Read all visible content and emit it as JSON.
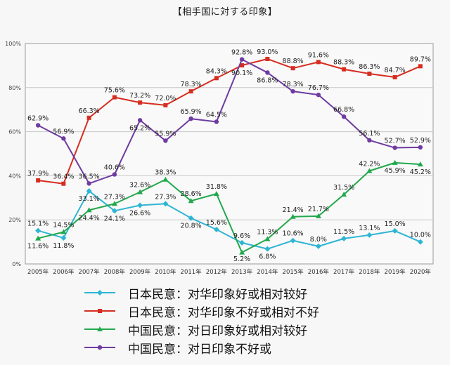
{
  "chart_data": {
    "type": "line",
    "title": "【相手国に対する印象】",
    "x": [
      "2005年",
      "2006年",
      "2007年",
      "2008年",
      "2009年",
      "2010年",
      "2011年",
      "2012年",
      "2013年",
      "2014年",
      "2015年",
      "2016年",
      "2017年",
      "2018年",
      "2019年",
      "2020年"
    ],
    "y_ticks": [
      "0%",
      "20%",
      "40%",
      "60%",
      "80%",
      "100%"
    ],
    "ylim": [
      0,
      100
    ],
    "grid": "horizontal",
    "legend_position": "bottom",
    "series": [
      {
        "name": "日本民意：对华印象好或相对较好",
        "color": "#2fb5d4",
        "marker": "diamond",
        "values": [
          15.1,
          11.8,
          33.1,
          24.1,
          26.6,
          27.3,
          20.8,
          15.6,
          9.6,
          6.8,
          10.6,
          8.0,
          11.5,
          13.1,
          15.0,
          10.0
        ],
        "labels": [
          "15.1%",
          "11.8%",
          "33.1%",
          "24.1%",
          "26.6%",
          "27.3%",
          "20.8%",
          "15.6%",
          "9.6%",
          "6.8%",
          "10.6%",
          "8.0%",
          "11.5%",
          "13.1%",
          "15.0%",
          "10.0%"
        ]
      },
      {
        "name": "日本民意：对华印象不好或相对不好",
        "color": "#d62d20",
        "marker": "square",
        "values": [
          37.9,
          36.4,
          66.3,
          75.6,
          73.2,
          72.0,
          78.3,
          84.3,
          90.1,
          93.0,
          88.8,
          91.6,
          88.3,
          86.3,
          84.7,
          89.7
        ],
        "labels": [
          "37.9%",
          "36.4%",
          "66.3%",
          "75.6%",
          "73.2%",
          "72.0%",
          "78.3%",
          "84.3%",
          "90.1%",
          "93.0%",
          "88.8%",
          "91.6%",
          "88.3%",
          "86.3%",
          "84.7%",
          "89.7%"
        ]
      },
      {
        "name": "中国民意：对日印象好或相对较好",
        "color": "#21a84c",
        "marker": "triangle",
        "values": [
          11.6,
          14.5,
          24.4,
          27.3,
          32.6,
          38.3,
          28.6,
          31.8,
          5.2,
          11.3,
          21.4,
          21.7,
          31.5,
          42.2,
          45.9,
          45.2
        ],
        "labels": [
          "11.6%",
          "14.5%",
          "24.4%",
          "27.3%",
          "32.6%",
          "38.3%",
          "28.6%",
          "31.8%",
          "5.2%",
          "11.3%",
          "21.4%",
          "21.7%",
          "31.5%",
          "42.2%",
          "45.9%",
          "45.2%"
        ]
      },
      {
        "name": "中国民意：对日印象不好或",
        "color": "#6e3ba0",
        "marker": "circle",
        "values": [
          62.9,
          56.9,
          36.5,
          40.6,
          65.2,
          55.9,
          65.9,
          64.5,
          92.8,
          86.8,
          78.3,
          76.7,
          66.8,
          56.1,
          52.7,
          52.9
        ],
        "labels": [
          "62.9%",
          "56.9%",
          "36.5%",
          "40.6%",
          "65.2%",
          "55.9%",
          "65.9%",
          "64.5%",
          "92.8%",
          "86.8%",
          "78.3%",
          "76.7%",
          "66.8%",
          "56.1%",
          "52.7%",
          "52.9%"
        ]
      }
    ]
  }
}
